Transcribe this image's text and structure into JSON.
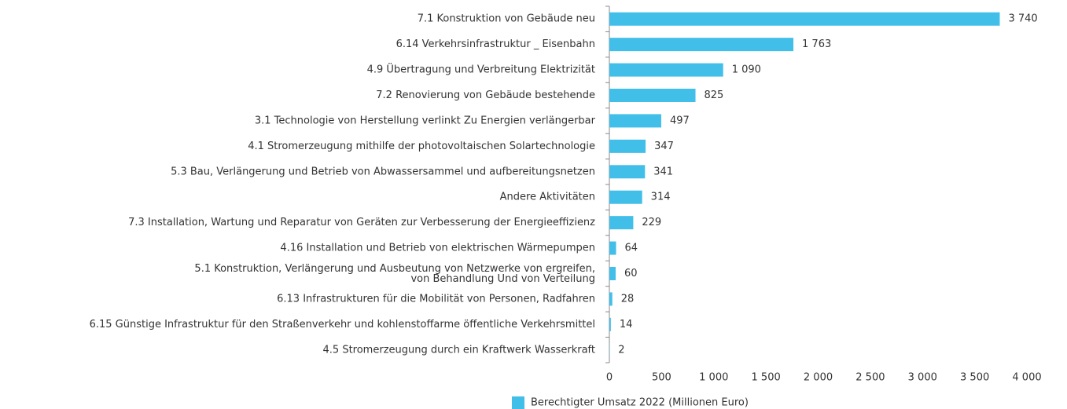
{
  "chart_data": {
    "type": "barh",
    "categories": [
      "7.1 Konstruktion von Gebäude neu",
      "6.14 Verkehrsinfrastruktur _ Eisenbahn",
      "4.9 Übertragung und Verbreitung Elektrizität",
      "7.2 Renovierung von Gebäude bestehende",
      "3.1 Technologie von Herstellung verlinkt Zu Energien verlängerbar",
      "4.1 Stromerzeugung mithilfe der photovoltaischen Solartechnologie",
      "5.3  Bau, Verlängerung und Betrieb von Abwassersammel und aufbereitungsnetzen",
      "Andere Aktivitäten",
      "7.3 Installation, Wartung und Reparatur von Geräten zur Verbesserung der Energieeffizienz",
      "4.16 Installation und Betrieb von elektrischen Wärmepumpen",
      "5.1 Konstruktion, Verlängerung und Ausbeutung von Netzwerke von ergreifen,\nvon Behandlung Und von Verteilung",
      "6.13 Infrastrukturen für die Mobilität von Personen, Radfahren",
      "6.15 Günstige Infrastruktur für den Straßenverkehr und kohlenstoffarme öffentliche Verkehrsmittel",
      "4.5 Stromerzeugung durch ein Kraftwerk Wasserkraft"
    ],
    "series": [
      {
        "name": "Berechtigter Umsatz 2022 (Millionen Euro)",
        "color": "#41bfe9",
        "values": [
          3740,
          1763,
          1090,
          825,
          497,
          347,
          341,
          314,
          229,
          64,
          60,
          28,
          14,
          2
        ],
        "value_labels": [
          "3 740",
          "1 763",
          "1 090",
          "825",
          "497",
          "347",
          "341",
          "314",
          "229",
          "64",
          "60",
          "28",
          "14",
          "2"
        ]
      }
    ],
    "xlim": [
      0,
      4000
    ],
    "xticks": [
      0,
      500,
      {
        "value": 1000,
        "label": "1 000"
      },
      {
        "value": 1500,
        "label": "1 500"
      },
      {
        "value": 2000,
        "label": "2 000"
      },
      {
        "value": 2500,
        "label": "2 500"
      },
      {
        "value": 3000,
        "label": "3 000"
      },
      {
        "value": 3500,
        "label": "3 500"
      },
      {
        "value": 4000,
        "label": "4 000"
      }
    ],
    "legend": "bottom"
  }
}
